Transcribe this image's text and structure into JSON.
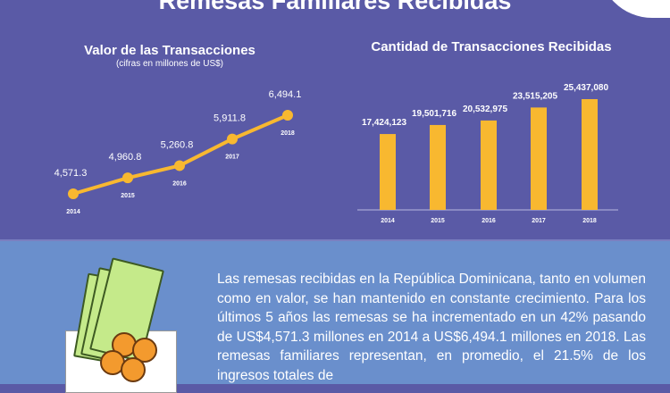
{
  "title": "Remesas Familiares Recibidas",
  "chart_data": [
    {
      "type": "line",
      "title": "Valor de las Transacciones",
      "subtitle": "(cifras en millones de US$)",
      "categories": [
        "2014",
        "2015",
        "2016",
        "2017",
        "2018"
      ],
      "values": [
        4571.3,
        4960.8,
        5260.8,
        5911.8,
        6494.1
      ],
      "labels": [
        "4,571.3",
        "4,960.8",
        "5,260.8",
        "5,911.8",
        "6,494.1"
      ],
      "color": "#f8b830",
      "grid": false
    },
    {
      "type": "bar",
      "title": "Cantidad de Transacciones Recibidas",
      "categories": [
        "2014",
        "2015",
        "2016",
        "2017",
        "2018"
      ],
      "values": [
        17424123,
        19501716,
        20532975,
        23515205,
        25437080
      ],
      "labels": [
        "17,424,123",
        "19,501,716",
        "20,532,975",
        "23,515,205",
        "25,437,080"
      ],
      "ylim": [
        0,
        25437080
      ],
      "color": "#f8b830",
      "grid": false
    }
  ],
  "paragraph": "Las remesas recibidas en la República Dominicana, tanto en volumen como en valor, se han mantenido en constante crecimiento. Para los últimos 5 años las remesas se ha incrementado en un 42% pasando de US$4,571.3 millones en 2014  a US$6,494.1 millones en 2018. Las remesas familiares representan, en promedio, el 21.5% de los ingresos totales de"
}
